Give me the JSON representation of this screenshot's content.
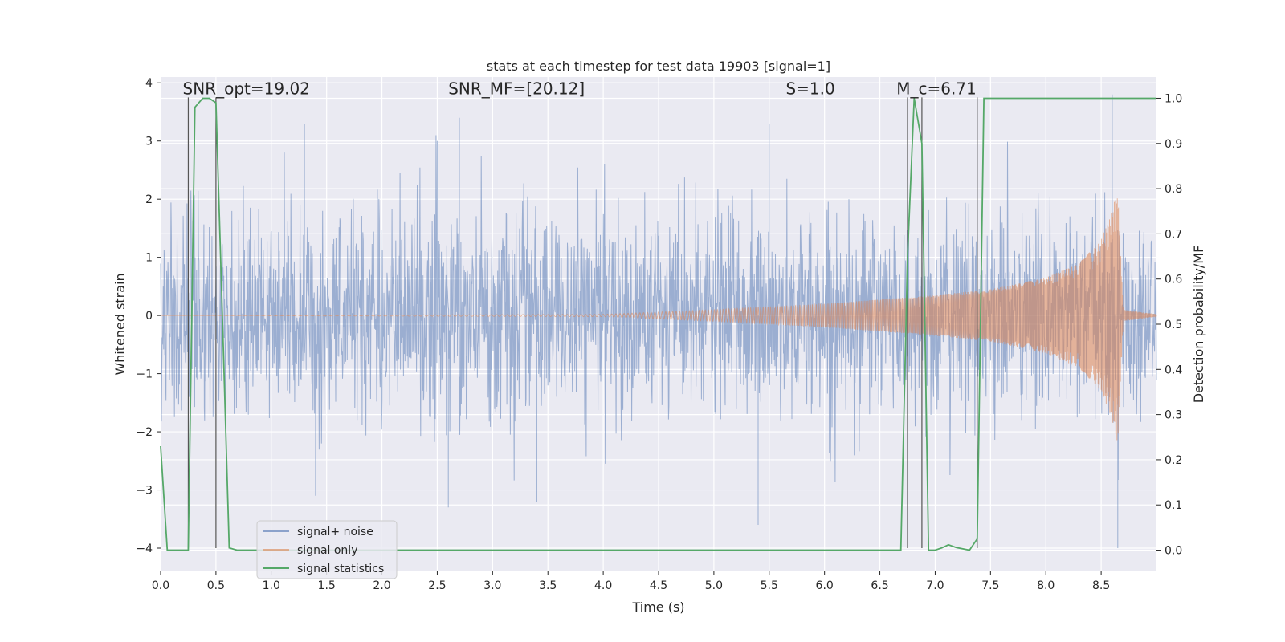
{
  "chart_data": {
    "type": "line",
    "title": "stats at each timestep for test data 19903 [signal=1]",
    "xlabel": "Time (s)",
    "ylabel": "Whitened strain",
    "y2label": "Detection probability/MF",
    "xlim": [
      0.0,
      9.0
    ],
    "ylim": [
      -4.4,
      4.1
    ],
    "y2lim": [
      -0.047,
      1.047
    ],
    "xticks": [
      "0.0",
      "0.5",
      "1.0",
      "1.5",
      "2.0",
      "2.5",
      "3.0",
      "3.5",
      "4.0",
      "4.5",
      "5.0",
      "5.5",
      "6.0",
      "6.5",
      "7.0",
      "7.5",
      "8.0",
      "8.5"
    ],
    "yticks": [
      "4",
      "3",
      "2",
      "1",
      "0",
      "−1",
      "−2",
      "−3",
      "−4"
    ],
    "y2ticks": [
      "1.0",
      "0.9",
      "0.8",
      "0.7",
      "0.6",
      "0.5",
      "0.4",
      "0.3",
      "0.2",
      "0.1",
      "0.0"
    ],
    "grid": true,
    "legend_position": "lower-left",
    "annotations": [
      {
        "text": "SNR_opt=19.02",
        "x": 0.2,
        "y": 3.8
      },
      {
        "text": "SNR_MF=[20.12]",
        "x": 2.6,
        "y": 3.8
      },
      {
        "text": "S=1.0",
        "x": 5.65,
        "y": 3.8
      },
      {
        "text": "M_c=6.71",
        "x": 6.65,
        "y": 3.8
      }
    ],
    "vertical_lines_x": [
      0.25,
      0.5,
      6.75,
      6.88,
      7.38
    ],
    "series": [
      {
        "name": "signal+ noise",
        "color": "#4c72b0",
        "description": "noisy whitened strain, roughly within ±2 with peaks to ±3.5",
        "peaks": [
          {
            "x": 1.3,
            "y": 3.3
          },
          {
            "x": 2.5,
            "y": 3.0
          },
          {
            "x": 2.7,
            "y": 3.4
          },
          {
            "x": 5.5,
            "y": 3.3
          },
          {
            "x": 8.6,
            "y": 3.8
          },
          {
            "x": 1.4,
            "y": -3.1
          },
          {
            "x": 2.6,
            "y": -3.3
          },
          {
            "x": 3.4,
            "y": -3.2
          },
          {
            "x": 5.4,
            "y": -3.6
          },
          {
            "x": 8.65,
            "y": -4.0
          }
        ]
      },
      {
        "name": "signal only",
        "color": "#dd8452",
        "description": "chirp with amplitude growing from 0 at t=4 to about 2.2 at t=8.65, then ringdown",
        "envelope": [
          {
            "x": 0.0,
            "y": 0.0
          },
          {
            "x": 4.0,
            "y": 0.02
          },
          {
            "x": 5.0,
            "y": 0.1
          },
          {
            "x": 6.0,
            "y": 0.2
          },
          {
            "x": 7.0,
            "y": 0.35
          },
          {
            "x": 7.5,
            "y": 0.45
          },
          {
            "x": 8.0,
            "y": 0.65
          },
          {
            "x": 8.3,
            "y": 0.9
          },
          {
            "x": 8.5,
            "y": 1.3
          },
          {
            "x": 8.6,
            "y": 1.8
          },
          {
            "x": 8.65,
            "y": 2.2
          },
          {
            "x": 8.7,
            "y": 0.1
          },
          {
            "x": 9.0,
            "y": 0.02
          }
        ]
      },
      {
        "name": "signal statistics",
        "color": "#55a868",
        "axis": "right",
        "x": [
          0.0,
          0.06,
          0.25,
          0.31,
          0.38,
          0.44,
          0.5,
          0.56,
          0.62,
          0.69,
          1.0,
          2.0,
          3.0,
          4.0,
          5.0,
          6.0,
          6.69,
          6.75,
          6.81,
          6.88,
          6.94,
          7.0,
          7.06,
          7.12,
          7.19,
          7.31,
          7.38,
          7.44,
          7.5,
          8.0,
          8.5,
          9.0
        ],
        "y": [
          0.23,
          0.0,
          0.0,
          0.98,
          1.0,
          1.0,
          0.99,
          0.5,
          0.005,
          0.0,
          0.0,
          0.0,
          0.0,
          0.0,
          0.0,
          0.0,
          0.0,
          0.65,
          1.0,
          0.9,
          0.0,
          0.0,
          0.005,
          0.012,
          0.006,
          0.0,
          0.025,
          1.0,
          1.0,
          1.0,
          1.0,
          1.0
        ]
      }
    ]
  }
}
